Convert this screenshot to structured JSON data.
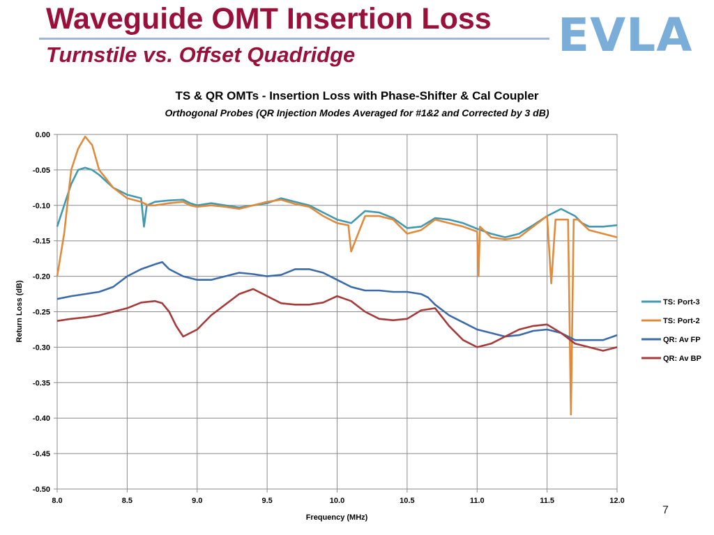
{
  "slide": {
    "title": "Waveguide OMT Insertion Loss",
    "subtitle": "Turnstile vs. Offset Quadridge",
    "logo_text": "EVLA",
    "page_number": "7",
    "title_color": "#99113a",
    "logo_color": "#7aaed8"
  },
  "chart_data": {
    "type": "line",
    "title": "TS & QR OMTs - Insertion Loss with Phase-Shifter & Cal Coupler",
    "subtitle": "Orthogonal Probes (QR Injection Modes Averaged for #1&2 and Corrected by 3 dB)",
    "xlabel": "Frequency (MHz)",
    "ylabel": "Return Loss (dB)",
    "xlim": [
      8.0,
      12.0
    ],
    "ylim": [
      -0.5,
      0.0
    ],
    "x_ticks": [
      "8.0",
      "8.5",
      "9.0",
      "9.5",
      "10.0",
      "10.5",
      "11.0",
      "11.5",
      "12.0"
    ],
    "y_ticks": [
      "0.00",
      "-0.05",
      "-0.10",
      "-0.15",
      "-0.20",
      "-0.25",
      "-0.30",
      "-0.35",
      "-0.40",
      "-0.45",
      "-0.50"
    ],
    "grid": true,
    "legend_position": "right",
    "series": [
      {
        "name": "TS: Port-3",
        "color": "#4198af",
        "x": [
          8.0,
          8.05,
          8.1,
          8.15,
          8.2,
          8.25,
          8.3,
          8.4,
          8.5,
          8.6,
          8.62,
          8.64,
          8.7,
          8.8,
          8.9,
          8.95,
          9.0,
          9.1,
          9.2,
          9.3,
          9.4,
          9.5,
          9.6,
          9.7,
          9.8,
          9.9,
          10.0,
          10.1,
          10.2,
          10.3,
          10.4,
          10.5,
          10.6,
          10.7,
          10.8,
          10.9,
          11.0,
          11.1,
          11.2,
          11.3,
          11.4,
          11.5,
          11.6,
          11.65,
          11.7,
          11.75,
          11.8,
          11.9,
          12.0
        ],
        "y": [
          -0.13,
          -0.1,
          -0.07,
          -0.05,
          -0.047,
          -0.05,
          -0.057,
          -0.075,
          -0.085,
          -0.09,
          -0.13,
          -0.1,
          -0.095,
          -0.093,
          -0.092,
          -0.097,
          -0.1,
          -0.097,
          -0.1,
          -0.103,
          -0.1,
          -0.097,
          -0.09,
          -0.095,
          -0.1,
          -0.11,
          -0.12,
          -0.125,
          -0.108,
          -0.11,
          -0.118,
          -0.132,
          -0.13,
          -0.118,
          -0.12,
          -0.125,
          -0.133,
          -0.14,
          -0.145,
          -0.14,
          -0.128,
          -0.115,
          -0.105,
          -0.11,
          -0.115,
          -0.125,
          -0.13,
          -0.13,
          -0.128
        ]
      },
      {
        "name": "TS: Port-2",
        "color": "#e08a3c",
        "x": [
          8.0,
          8.05,
          8.1,
          8.15,
          8.2,
          8.25,
          8.3,
          8.4,
          8.5,
          8.6,
          8.65,
          8.7,
          8.8,
          8.9,
          8.95,
          9.0,
          9.1,
          9.2,
          9.3,
          9.4,
          9.5,
          9.6,
          9.7,
          9.8,
          9.9,
          10.0,
          10.08,
          10.1,
          10.2,
          10.3,
          10.4,
          10.5,
          10.6,
          10.7,
          10.8,
          10.9,
          11.0,
          11.01,
          11.02,
          11.1,
          11.2,
          11.3,
          11.4,
          11.5,
          11.53,
          11.56,
          11.6,
          11.65,
          11.67,
          11.69,
          11.72,
          11.8,
          11.9,
          12.0
        ],
        "y": [
          -0.2,
          -0.14,
          -0.05,
          -0.02,
          -0.003,
          -0.015,
          -0.05,
          -0.075,
          -0.09,
          -0.095,
          -0.1,
          -0.1,
          -0.097,
          -0.095,
          -0.1,
          -0.102,
          -0.1,
          -0.102,
          -0.105,
          -0.1,
          -0.095,
          -0.092,
          -0.098,
          -0.102,
          -0.115,
          -0.125,
          -0.128,
          -0.165,
          -0.115,
          -0.115,
          -0.12,
          -0.14,
          -0.135,
          -0.12,
          -0.125,
          -0.13,
          -0.137,
          -0.2,
          -0.13,
          -0.145,
          -0.148,
          -0.145,
          -0.13,
          -0.115,
          -0.21,
          -0.12,
          -0.12,
          -0.12,
          -0.395,
          -0.12,
          -0.12,
          -0.135,
          -0.14,
          -0.145
        ]
      },
      {
        "name": "QR: Av FP",
        "color": "#3b6aa8",
        "x": [
          8.0,
          8.1,
          8.2,
          8.3,
          8.4,
          8.5,
          8.6,
          8.7,
          8.75,
          8.8,
          8.9,
          9.0,
          9.1,
          9.2,
          9.3,
          9.4,
          9.5,
          9.6,
          9.7,
          9.8,
          9.9,
          10.0,
          10.1,
          10.2,
          10.3,
          10.4,
          10.5,
          10.6,
          10.65,
          10.7,
          10.8,
          10.9,
          11.0,
          11.1,
          11.2,
          11.3,
          11.4,
          11.5,
          11.6,
          11.7,
          11.8,
          11.9,
          12.0
        ],
        "y": [
          -0.232,
          -0.228,
          -0.225,
          -0.222,
          -0.215,
          -0.2,
          -0.19,
          -0.183,
          -0.18,
          -0.19,
          -0.2,
          -0.205,
          -0.205,
          -0.2,
          -0.195,
          -0.197,
          -0.2,
          -0.198,
          -0.19,
          -0.19,
          -0.195,
          -0.205,
          -0.215,
          -0.22,
          -0.22,
          -0.222,
          -0.222,
          -0.225,
          -0.23,
          -0.24,
          -0.255,
          -0.265,
          -0.275,
          -0.28,
          -0.285,
          -0.283,
          -0.277,
          -0.275,
          -0.28,
          -0.29,
          -0.29,
          -0.29,
          -0.283
        ]
      },
      {
        "name": "QR: Av BP",
        "color": "#a43a3a",
        "x": [
          8.0,
          8.1,
          8.2,
          8.3,
          8.4,
          8.5,
          8.6,
          8.7,
          8.75,
          8.8,
          8.85,
          8.9,
          9.0,
          9.1,
          9.2,
          9.3,
          9.4,
          9.5,
          9.6,
          9.7,
          9.8,
          9.9,
          10.0,
          10.1,
          10.2,
          10.3,
          10.4,
          10.5,
          10.6,
          10.7,
          10.8,
          10.9,
          11.0,
          11.1,
          11.2,
          11.3,
          11.4,
          11.5,
          11.6,
          11.7,
          11.8,
          11.9,
          12.0
        ],
        "y": [
          -0.263,
          -0.26,
          -0.258,
          -0.255,
          -0.25,
          -0.245,
          -0.237,
          -0.235,
          -0.238,
          -0.25,
          -0.27,
          -0.285,
          -0.275,
          -0.255,
          -0.24,
          -0.225,
          -0.218,
          -0.228,
          -0.238,
          -0.24,
          -0.24,
          -0.237,
          -0.228,
          -0.235,
          -0.25,
          -0.26,
          -0.262,
          -0.26,
          -0.248,
          -0.245,
          -0.27,
          -0.29,
          -0.3,
          -0.295,
          -0.285,
          -0.275,
          -0.27,
          -0.268,
          -0.28,
          -0.295,
          -0.3,
          -0.305,
          -0.3
        ]
      }
    ]
  }
}
